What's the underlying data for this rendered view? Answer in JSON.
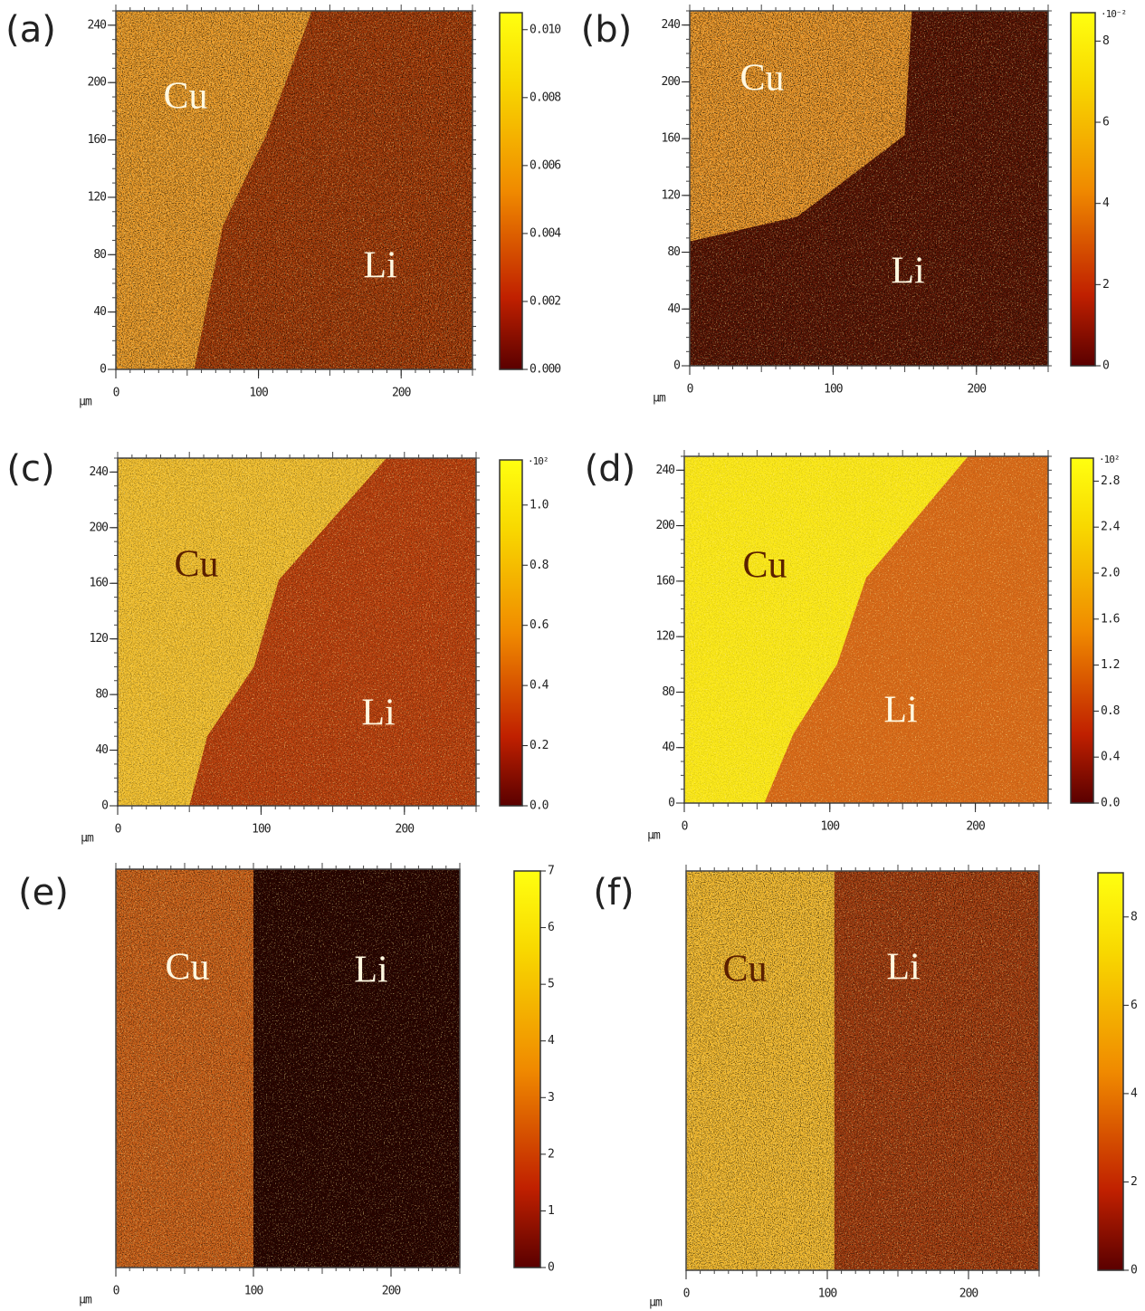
{
  "panels": [
    {
      "label": "(a)",
      "unit": "µm",
      "xlim": [
        0,
        250
      ],
      "ylim": [
        0,
        250
      ],
      "xticks": [
        0,
        100,
        200
      ],
      "yticks": [
        0,
        40,
        80,
        120,
        160,
        200,
        240
      ],
      "cbar_lim": [
        0,
        0.0105
      ],
      "cbar_ticks": [
        {
          "value": 0,
          "label": "0.000"
        },
        {
          "value": 0.002,
          "label": "0.002"
        },
        {
          "value": 0.004,
          "label": "0.004"
        },
        {
          "value": 0.006,
          "label": "0.006"
        },
        {
          "value": 0.008,
          "label": "0.008"
        },
        {
          "value": 0.01,
          "label": "0.010"
        }
      ],
      "regions": [
        "Cu",
        "Li"
      ]
    },
    {
      "label": "(b)",
      "unit": "µm",
      "xlim": [
        0,
        250
      ],
      "ylim": [
        0,
        250
      ],
      "xticks": [
        0,
        100,
        200
      ],
      "yticks": [
        0,
        40,
        80,
        120,
        160,
        200,
        240
      ],
      "cbar_lim": [
        0,
        8.7
      ],
      "cbar_ticks": [
        0,
        2,
        4,
        6,
        8
      ],
      "cbar_exponent": "·10⁻²",
      "regions": [
        "Cu",
        "Li"
      ]
    },
    {
      "label": "(c)",
      "unit": "µm",
      "xlim": [
        0,
        250
      ],
      "ylim": [
        0,
        250
      ],
      "xticks": [
        0,
        100,
        200
      ],
      "yticks": [
        0,
        40,
        80,
        120,
        160,
        200,
        240
      ],
      "cbar_lim": [
        0,
        1.15
      ],
      "cbar_ticks": [
        {
          "value": 0,
          "label": "0.0"
        },
        0.2,
        0.4,
        0.6,
        0.8,
        {
          "value": 1,
          "label": "1.0"
        }
      ],
      "cbar_exponent": "·10²",
      "regions": [
        "Cu",
        "Li"
      ]
    },
    {
      "label": "(d)",
      "unit": "µm",
      "xlim": [
        0,
        250
      ],
      "ylim": [
        0,
        250
      ],
      "xticks": [
        0,
        100,
        200
      ],
      "yticks": [
        0,
        40,
        80,
        120,
        160,
        200,
        240
      ],
      "cbar_lim": [
        0,
        3.0
      ],
      "cbar_ticks": [
        {
          "value": 0,
          "label": "0.0"
        },
        0.4,
        0.8,
        1.2,
        1.6,
        {
          "value": 2,
          "label": "2.0"
        },
        2.4,
        2.8
      ],
      "cbar_exponent": "·10²",
      "regions": [
        "Cu",
        "Li"
      ]
    },
    {
      "label": "(e)",
      "unit": "µm",
      "xlim": [
        0,
        250
      ],
      "xticks": [
        0,
        100,
        200
      ],
      "cbar_lim": [
        0,
        7
      ],
      "cbar_ticks": [
        0,
        1,
        2,
        3,
        4,
        5,
        6,
        7
      ],
      "regions": [
        "Cu",
        "Li"
      ]
    },
    {
      "label": "(f)",
      "unit": "µm",
      "xlim": [
        0,
        250
      ],
      "xticks": [
        0,
        100,
        200
      ],
      "cbar_lim": [
        0,
        9
      ],
      "cbar_ticks": [
        0,
        2,
        4,
        6,
        8
      ],
      "regions": [
        "Cu",
        "Li"
      ]
    }
  ]
}
